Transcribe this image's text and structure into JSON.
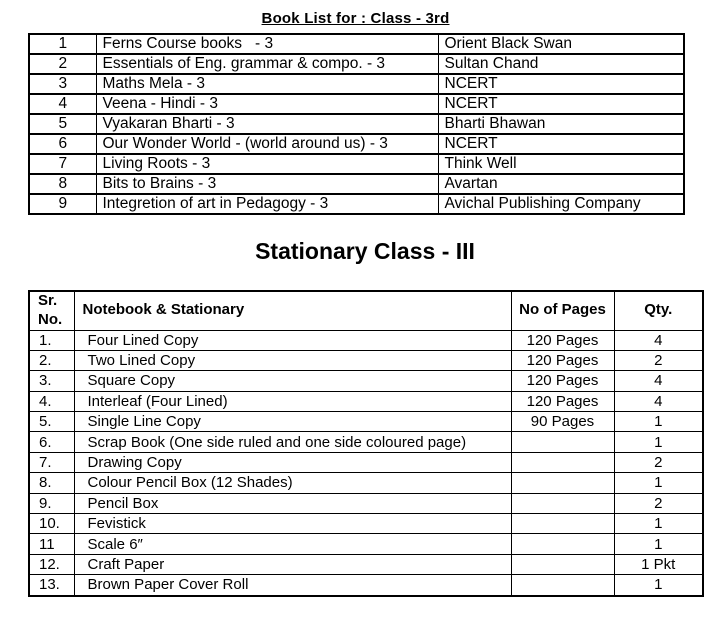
{
  "page": {
    "background": "#ffffff",
    "text_color": "#000000",
    "border_color": "#000000"
  },
  "book_list": {
    "title": "Book List for : Class - 3rd",
    "rows": [
      {
        "sr": "1",
        "book": "Ferns Course books   - 3",
        "publisher": "Orient Black Swan"
      },
      {
        "sr": "2",
        "book": "Essentials of Eng. grammar & compo. - 3",
        "publisher": "Sultan Chand"
      },
      {
        "sr": "3",
        "book": "Maths Mela - 3",
        "publisher": "NCERT"
      },
      {
        "sr": "4",
        "book": "Veena - Hindi - 3",
        "publisher": "NCERT"
      },
      {
        "sr": "5",
        "book": "Vyakaran Bharti - 3",
        "publisher": "Bharti Bhawan"
      },
      {
        "sr": "6",
        "book": "Our Wonder World - (world around us) - 3",
        "publisher": "NCERT"
      },
      {
        "sr": "7",
        "book": "Living Roots - 3",
        "publisher": "Think Well"
      },
      {
        "sr": "8",
        "book": "Bits to Brains - 3",
        "publisher": "Avartan"
      },
      {
        "sr": "9",
        "book": "Integretion of art in Pedagogy - 3",
        "publisher": "Avichal Publishing Company"
      }
    ]
  },
  "stationary": {
    "title": "Stationary Class - III",
    "headers": {
      "sr": "Sr.\nNo.",
      "item": "Notebook & Stationary",
      "pages": "No of Pages",
      "qty": "Qty."
    },
    "rows": [
      {
        "sr": "1.",
        "item": "Four Lined Copy",
        "pages": "120 Pages",
        "qty": "4"
      },
      {
        "sr": "2.",
        "item": "Two Lined Copy",
        "pages": "120 Pages",
        "qty": "2"
      },
      {
        "sr": "3.",
        "item": "Square Copy",
        "pages": "120 Pages",
        "qty": "4"
      },
      {
        "sr": "4.",
        "item": "Interleaf (Four Lined)",
        "pages": "120 Pages",
        "qty": "4"
      },
      {
        "sr": "5.",
        "item": "Single Line Copy",
        "pages": "90 Pages",
        "qty": "1"
      },
      {
        "sr": "6.",
        "item": "Scrap Book (One side ruled and one side coloured page)",
        "pages": "",
        "qty": "1"
      },
      {
        "sr": "7.",
        "item": "Drawing Copy",
        "pages": "",
        "qty": "2"
      },
      {
        "sr": "8.",
        "item": "Colour Pencil Box (12 Shades)",
        "pages": "",
        "qty": "1"
      },
      {
        "sr": "9.",
        "item": "Pencil Box",
        "pages": "",
        "qty": "2"
      },
      {
        "sr": "10.",
        "item": "Fevistick",
        "pages": "",
        "qty": "1"
      },
      {
        "sr": "11",
        "item": "Scale 6″",
        "pages": "",
        "qty": "1"
      },
      {
        "sr": "12.",
        "item": "Craft Paper",
        "pages": "",
        "qty": "1 Pkt"
      },
      {
        "sr": "13.",
        "item": "Brown Paper Cover Roll",
        "pages": "",
        "qty": "1"
      }
    ]
  }
}
